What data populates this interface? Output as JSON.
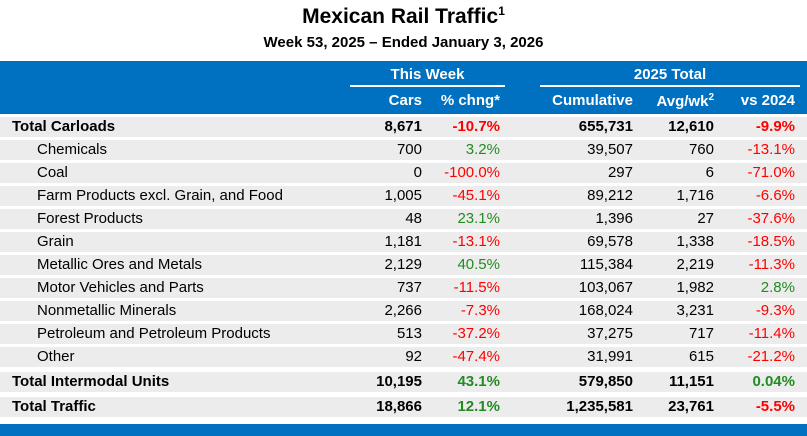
{
  "title": "Mexican Rail Traffic",
  "title_sup": "1",
  "subtitle": "Week 53, 2025 – Ended January 3, 2026",
  "header": {
    "this_week": "This Week",
    "total": "2025 Total",
    "cars": "Cars",
    "pct": "% chng*",
    "cumulative": "Cumulative",
    "avg": "Avg/wk",
    "avg_sup": "2",
    "vs": "vs 2024"
  },
  "colors": {
    "header": "#0070c0",
    "negative": "#ff0000",
    "positive": "#228b22"
  },
  "rows": [
    {
      "label": "Total Carloads",
      "cars": "8,671",
      "pct": "-10.7%",
      "cum": "655,731",
      "avg": "12,610",
      "vs": "-9.9%",
      "type": "bold"
    },
    {
      "label": "Chemicals",
      "cars": "700",
      "pct": "3.2%",
      "cum": "39,507",
      "avg": "760",
      "vs": "-13.1%",
      "type": "sub"
    },
    {
      "label": "Coal",
      "cars": "0",
      "pct": "-100.0%",
      "cum": "297",
      "avg": "6",
      "vs": "-71.0%",
      "type": "sub"
    },
    {
      "label": "Farm Products excl. Grain, and Food",
      "cars": "1,005",
      "pct": "-45.1%",
      "cum": "89,212",
      "avg": "1,716",
      "vs": "-6.6%",
      "type": "sub"
    },
    {
      "label": "Forest Products",
      "cars": "48",
      "pct": "23.1%",
      "cum": "1,396",
      "avg": "27",
      "vs": "-37.6%",
      "type": "sub"
    },
    {
      "label": "Grain",
      "cars": "1,181",
      "pct": "-13.1%",
      "cum": "69,578",
      "avg": "1,338",
      "vs": "-18.5%",
      "type": "sub"
    },
    {
      "label": "Metallic Ores and Metals",
      "cars": "2,129",
      "pct": "40.5%",
      "cum": "115,384",
      "avg": "2,219",
      "vs": "-11.3%",
      "type": "sub"
    },
    {
      "label": "Motor Vehicles and Parts",
      "cars": "737",
      "pct": "-11.5%",
      "cum": "103,067",
      "avg": "1,982",
      "vs": "2.8%",
      "type": "sub"
    },
    {
      "label": "Nonmetallic Minerals",
      "cars": "2,266",
      "pct": "-7.3%",
      "cum": "168,024",
      "avg": "3,231",
      "vs": "-9.3%",
      "type": "sub"
    },
    {
      "label": "Petroleum and Petroleum Products",
      "cars": "513",
      "pct": "-37.2%",
      "cum": "37,275",
      "avg": "717",
      "vs": "-11.4%",
      "type": "sub"
    },
    {
      "label": "Other",
      "cars": "92",
      "pct": "-47.4%",
      "cum": "31,991",
      "avg": "615",
      "vs": "-21.2%",
      "type": "sub"
    },
    {
      "label": "Total Intermodal Units",
      "cars": "10,195",
      "pct": "43.1%",
      "cum": "579,850",
      "avg": "11,151",
      "vs": "0.04%",
      "type": "bold"
    },
    {
      "label": "Total Traffic",
      "cars": "18,866",
      "pct": "12.1%",
      "cum": "1,235,581",
      "avg": "23,761",
      "vs": "-5.5%",
      "type": "bold"
    }
  ]
}
